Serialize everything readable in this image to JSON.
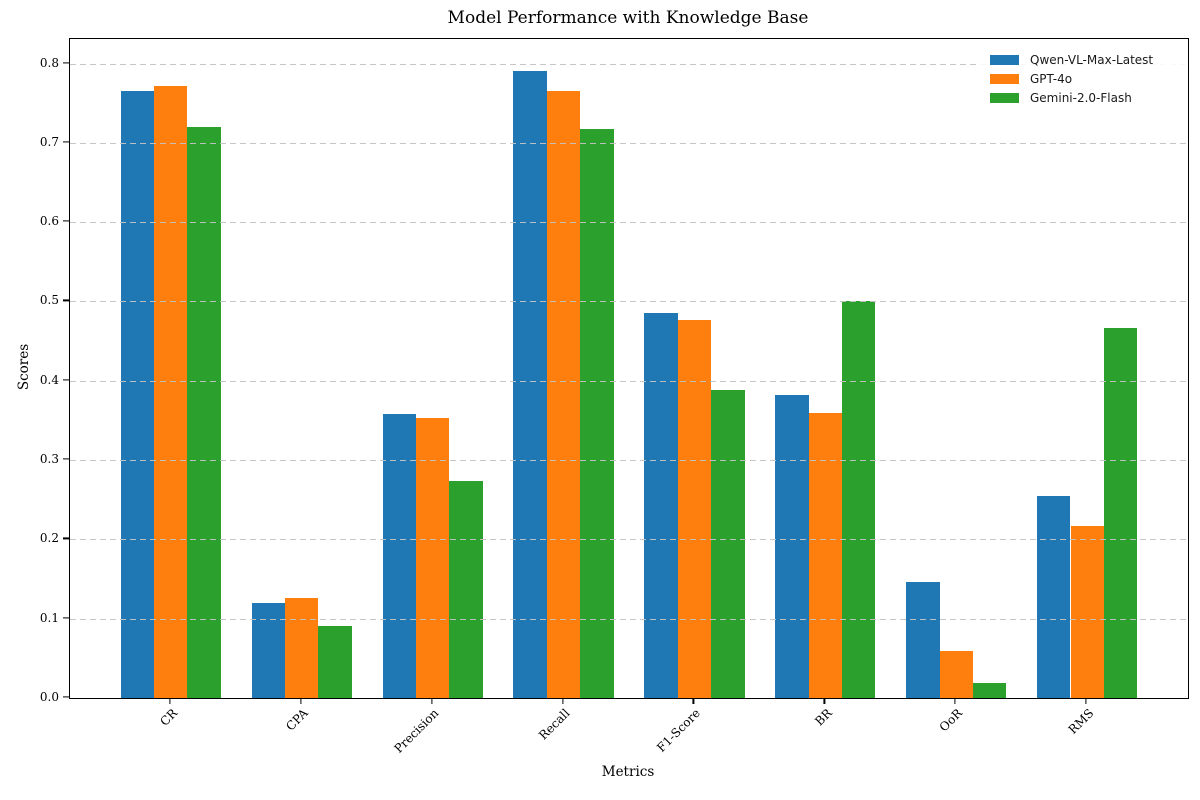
{
  "chart_data": {
    "type": "bar",
    "title": "Model Performance with Knowledge Base",
    "xlabel": "Metrics",
    "ylabel": "Scores",
    "categories": [
      "CR",
      "CPA",
      "Precision",
      "Recall",
      "F1-Score",
      "BR",
      "OoR",
      "RMS"
    ],
    "series": [
      {
        "name": "Qwen-VL-Max-Latest",
        "color": "#1f77b4",
        "values": [
          0.765,
          0.12,
          0.358,
          0.791,
          0.485,
          0.382,
          0.146,
          0.255
        ]
      },
      {
        "name": "GPT-4o",
        "color": "#ff7f0e",
        "values": [
          0.772,
          0.126,
          0.353,
          0.766,
          0.477,
          0.36,
          0.059,
          0.217
        ]
      },
      {
        "name": "Gemini-2.0-Flash",
        "color": "#2ca02c",
        "values": [
          0.72,
          0.091,
          0.274,
          0.717,
          0.388,
          0.501,
          0.019,
          0.466
        ]
      }
    ],
    "yticks": [
      "0.0",
      "0.1",
      "0.2",
      "0.3",
      "0.4",
      "0.5",
      "0.6",
      "0.7",
      "0.8"
    ],
    "ylim": [
      0,
      0.831
    ],
    "grid": {
      "axis": "y",
      "style": "dashed",
      "color": "#c3c3c3",
      "over_bars": true
    },
    "legend": {
      "position": "upper right"
    }
  }
}
